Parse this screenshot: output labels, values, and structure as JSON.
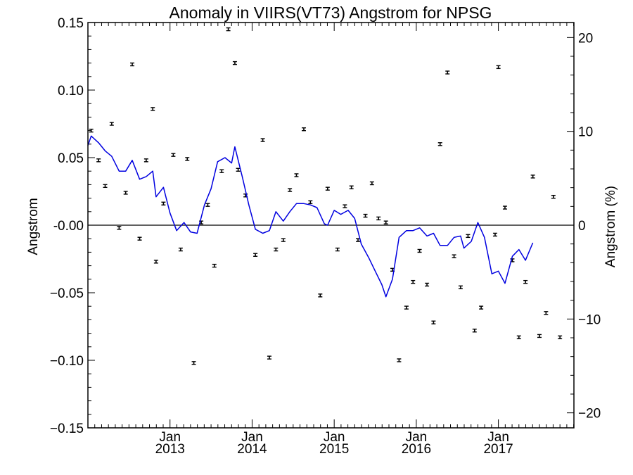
{
  "chart_data": {
    "type": "scatter",
    "title": "Anomaly in VIIRS(VT73) Angstrom for NPSG",
    "ylabel": "Angstrom",
    "y2label": "Angstrom (%)",
    "xlabel": "",
    "xlim": [
      2012.0,
      2017.92
    ],
    "ylim": [
      -0.15,
      0.15
    ],
    "y2lim": [
      -21.6,
      21.6
    ],
    "yticks": [
      {
        "v": 0.15,
        "label": "0.15"
      },
      {
        "v": 0.1,
        "label": "0.10"
      },
      {
        "v": 0.05,
        "label": "0.05"
      },
      {
        "v": 0.0,
        "label": "-0.00"
      },
      {
        "v": -0.05,
        "label": "−0.05"
      },
      {
        "v": -0.1,
        "label": "−0.10"
      },
      {
        "v": -0.15,
        "label": "−0.15"
      }
    ],
    "y2ticks": [
      {
        "v": 20,
        "label": "20"
      },
      {
        "v": 10,
        "label": "10"
      },
      {
        "v": 0,
        "label": "0"
      },
      {
        "v": -10,
        "label": "−10"
      },
      {
        "v": -20,
        "label": "−20"
      }
    ],
    "xticks": [
      {
        "v": 2013.0,
        "top": "Jan",
        "bottom": "2013"
      },
      {
        "v": 2014.0,
        "top": "Jan",
        "bottom": "2014"
      },
      {
        "v": 2015.0,
        "top": "Jan",
        "bottom": "2015"
      },
      {
        "v": 2016.0,
        "top": "Jan",
        "bottom": "2016"
      },
      {
        "v": 2017.0,
        "top": "Jan",
        "bottom": "2017"
      }
    ],
    "zero_line": true,
    "grid": false,
    "series": [
      {
        "kind": "points_with_errorbars",
        "color": "#000000",
        "points": [
          {
            "x": 2012.04,
            "y": 0.07
          },
          {
            "x": 2012.13,
            "y": 0.048
          },
          {
            "x": 2012.21,
            "y": 0.029
          },
          {
            "x": 2012.29,
            "y": 0.075
          },
          {
            "x": 2012.38,
            "y": -0.002
          },
          {
            "x": 2012.46,
            "y": 0.024
          },
          {
            "x": 2012.54,
            "y": 0.119
          },
          {
            "x": 2012.63,
            "y": -0.01
          },
          {
            "x": 2012.71,
            "y": 0.048
          },
          {
            "x": 2012.79,
            "y": 0.086
          },
          {
            "x": 2012.83,
            "y": -0.027
          },
          {
            "x": 2012.92,
            "y": 0.016
          },
          {
            "x": 2013.04,
            "y": 0.052
          },
          {
            "x": 2013.13,
            "y": -0.018
          },
          {
            "x": 2013.21,
            "y": 0.049
          },
          {
            "x": 2013.29,
            "y": -0.102
          },
          {
            "x": 2013.38,
            "y": 0.002
          },
          {
            "x": 2013.46,
            "y": 0.015
          },
          {
            "x": 2013.54,
            "y": -0.03
          },
          {
            "x": 2013.63,
            "y": 0.04
          },
          {
            "x": 2013.71,
            "y": 0.145
          },
          {
            "x": 2013.79,
            "y": 0.12
          },
          {
            "x": 2013.83,
            "y": 0.041
          },
          {
            "x": 2013.92,
            "y": 0.022
          },
          {
            "x": 2014.04,
            "y": -0.022
          },
          {
            "x": 2014.13,
            "y": 0.063
          },
          {
            "x": 2014.21,
            "y": -0.098
          },
          {
            "x": 2014.29,
            "y": -0.018
          },
          {
            "x": 2014.38,
            "y": -0.011
          },
          {
            "x": 2014.46,
            "y": 0.026
          },
          {
            "x": 2014.54,
            "y": 0.037
          },
          {
            "x": 2014.63,
            "y": 0.071
          },
          {
            "x": 2014.71,
            "y": 0.017
          },
          {
            "x": 2014.83,
            "y": -0.052
          },
          {
            "x": 2014.92,
            "y": 0.027
          },
          {
            "x": 2015.04,
            "y": -0.018
          },
          {
            "x": 2015.13,
            "y": 0.014
          },
          {
            "x": 2015.21,
            "y": 0.028
          },
          {
            "x": 2015.29,
            "y": -0.011
          },
          {
            "x": 2015.38,
            "y": 0.007
          },
          {
            "x": 2015.46,
            "y": 0.031
          },
          {
            "x": 2015.54,
            "y": 0.005
          },
          {
            "x": 2015.63,
            "y": 0.002
          },
          {
            "x": 2015.71,
            "y": -0.033
          },
          {
            "x": 2015.79,
            "y": -0.1
          },
          {
            "x": 2015.88,
            "y": -0.061
          },
          {
            "x": 2015.96,
            "y": -0.042
          },
          {
            "x": 2016.04,
            "y": -0.019
          },
          {
            "x": 2016.13,
            "y": -0.044
          },
          {
            "x": 2016.21,
            "y": -0.072
          },
          {
            "x": 2016.29,
            "y": 0.06
          },
          {
            "x": 2016.38,
            "y": 0.113
          },
          {
            "x": 2016.46,
            "y": -0.023
          },
          {
            "x": 2016.54,
            "y": -0.046
          },
          {
            "x": 2016.63,
            "y": -0.008
          },
          {
            "x": 2016.71,
            "y": -0.078
          },
          {
            "x": 2016.79,
            "y": -0.061
          },
          {
            "x": 2016.96,
            "y": -0.007
          },
          {
            "x": 2017.0,
            "y": 0.117
          },
          {
            "x": 2017.08,
            "y": 0.013
          },
          {
            "x": 2017.17,
            "y": -0.026
          },
          {
            "x": 2017.25,
            "y": -0.083
          },
          {
            "x": 2017.33,
            "y": -0.042
          },
          {
            "x": 2017.42,
            "y": 0.036
          },
          {
            "x": 2017.5,
            "y": -0.082
          },
          {
            "x": 2017.58,
            "y": -0.065
          },
          {
            "x": 2017.67,
            "y": 0.021
          },
          {
            "x": 2017.75,
            "y": -0.083
          }
        ]
      },
      {
        "kind": "line",
        "color": "#0000e0",
        "points": [
          [
            2012.0,
            0.059
          ],
          [
            2012.04,
            0.066
          ],
          [
            2012.13,
            0.061
          ],
          [
            2012.21,
            0.055
          ],
          [
            2012.29,
            0.051
          ],
          [
            2012.38,
            0.04
          ],
          [
            2012.46,
            0.04
          ],
          [
            2012.54,
            0.048
          ],
          [
            2012.63,
            0.034
          ],
          [
            2012.71,
            0.036
          ],
          [
            2012.79,
            0.04
          ],
          [
            2012.83,
            0.021
          ],
          [
            2012.92,
            0.028
          ],
          [
            2013.0,
            0.009
          ],
          [
            2013.08,
            -0.004
          ],
          [
            2013.17,
            0.002
          ],
          [
            2013.25,
            -0.005
          ],
          [
            2013.33,
            -0.006
          ],
          [
            2013.42,
            0.015
          ],
          [
            2013.5,
            0.027
          ],
          [
            2013.58,
            0.047
          ],
          [
            2013.67,
            0.05
          ],
          [
            2013.75,
            0.046
          ],
          [
            2013.79,
            0.058
          ],
          [
            2013.88,
            0.036
          ],
          [
            2013.96,
            0.015
          ],
          [
            2014.04,
            -0.003
          ],
          [
            2014.13,
            -0.006
          ],
          [
            2014.21,
            -0.004
          ],
          [
            2014.29,
            0.01
          ],
          [
            2014.38,
            0.003
          ],
          [
            2014.46,
            0.01
          ],
          [
            2014.54,
            0.016
          ],
          [
            2014.63,
            0.016
          ],
          [
            2014.71,
            0.015
          ],
          [
            2014.79,
            0.013
          ],
          [
            2014.88,
            0.001
          ],
          [
            2014.92,
            0.0
          ],
          [
            2015.0,
            0.011
          ],
          [
            2015.08,
            0.008
          ],
          [
            2015.17,
            0.011
          ],
          [
            2015.25,
            0.005
          ],
          [
            2015.33,
            -0.014
          ],
          [
            2015.42,
            -0.024
          ],
          [
            2015.5,
            -0.034
          ],
          [
            2015.58,
            -0.044
          ],
          [
            2015.63,
            -0.053
          ],
          [
            2015.71,
            -0.04
          ],
          [
            2015.79,
            -0.009
          ],
          [
            2015.88,
            -0.004
          ],
          [
            2015.96,
            -0.004
          ],
          [
            2016.04,
            -0.002
          ],
          [
            2016.13,
            -0.008
          ],
          [
            2016.21,
            -0.006
          ],
          [
            2016.29,
            -0.015
          ],
          [
            2016.38,
            -0.015
          ],
          [
            2016.46,
            -0.009
          ],
          [
            2016.54,
            -0.008
          ],
          [
            2016.58,
            -0.017
          ],
          [
            2016.67,
            -0.012
          ],
          [
            2016.75,
            0.002
          ],
          [
            2016.83,
            -0.009
          ],
          [
            2016.92,
            -0.036
          ],
          [
            2017.0,
            -0.034
          ],
          [
            2017.08,
            -0.043
          ],
          [
            2017.17,
            -0.023
          ],
          [
            2017.25,
            -0.018
          ],
          [
            2017.33,
            -0.026
          ],
          [
            2017.42,
            -0.013
          ]
        ]
      }
    ]
  }
}
